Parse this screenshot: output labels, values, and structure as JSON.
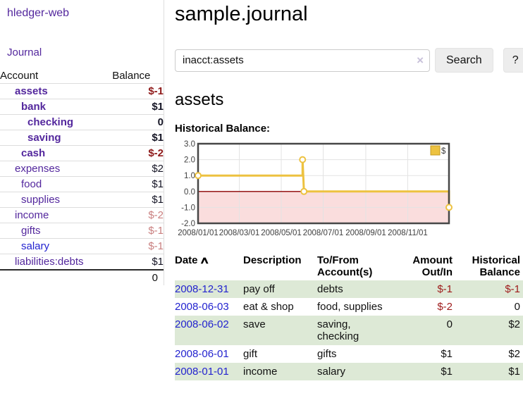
{
  "sidebar": {
    "brand": "hledger-web",
    "journal_link": "Journal",
    "accounts_table": {
      "col_account": "Account",
      "col_balance": "Balance",
      "rows": [
        {
          "account": "assets",
          "balance": "$-1",
          "indent": 0,
          "bold": true,
          "negative": true,
          "blue": false
        },
        {
          "account": "bank",
          "balance": "$1",
          "indent": 1,
          "bold": true,
          "negative": false,
          "blue": false
        },
        {
          "account": "checking",
          "balance": "0",
          "indent": 2,
          "bold": true,
          "negative": false,
          "blue": false
        },
        {
          "account": "saving",
          "balance": "$1",
          "indent": 2,
          "bold": true,
          "negative": false,
          "blue": false
        },
        {
          "account": "cash",
          "balance": "$-2",
          "indent": 1,
          "bold": true,
          "negative": true,
          "blue": false
        },
        {
          "account": "expenses",
          "balance": "$2",
          "indent": 0,
          "bold": false,
          "negative": false,
          "blue": false
        },
        {
          "account": "food",
          "balance": "$1",
          "indent": 1,
          "bold": false,
          "negative": false,
          "blue": false
        },
        {
          "account": "supplies",
          "balance": "$1",
          "indent": 1,
          "bold": false,
          "negative": false,
          "blue": false
        },
        {
          "account": "income",
          "balance": "$-2",
          "indent": 0,
          "bold": false,
          "negative": true,
          "blue": false
        },
        {
          "account": "gifts",
          "balance": "$-1",
          "indent": 1,
          "bold": false,
          "negative": true,
          "blue": false
        },
        {
          "account": "salary",
          "balance": "$-1",
          "indent": 1,
          "bold": false,
          "negative": true,
          "blue": true
        },
        {
          "account": "liabilities:debts",
          "balance": "$1",
          "indent": 0,
          "bold": false,
          "negative": false,
          "blue": false
        }
      ],
      "total": "0"
    }
  },
  "main": {
    "title": "sample.journal",
    "search": {
      "value": "inacct:assets",
      "clear": "×",
      "button": "Search",
      "help": "?"
    },
    "register": {
      "heading": "assets",
      "chart_title": "Historical Balance:",
      "table": {
        "headers": {
          "date": "Date",
          "sort_icon": "∧",
          "description": "Description",
          "accounts": "To/From Account(s)",
          "amount": "Amount Out/In",
          "balance": "Historical Balance"
        },
        "rows": [
          {
            "date": "2008-12-31",
            "description": "pay off",
            "accounts": "debts",
            "amount": "$-1",
            "amount_negative": true,
            "balance": "$-1",
            "balance_negative": true
          },
          {
            "date": "2008-06-03",
            "description": "eat & shop",
            "accounts": "food, supplies",
            "amount": "$-2",
            "amount_negative": true,
            "balance": "0",
            "balance_negative": false
          },
          {
            "date": "2008-06-02",
            "description": "save",
            "accounts": "saving, checking",
            "amount": "0",
            "amount_negative": false,
            "balance": "$2",
            "balance_negative": false
          },
          {
            "date": "2008-06-01",
            "description": "gift",
            "accounts": "gifts",
            "amount": "$1",
            "amount_negative": false,
            "balance": "$2",
            "balance_negative": false
          },
          {
            "date": "2008-01-01",
            "description": "income",
            "accounts": "salary",
            "amount": "$1",
            "amount_negative": false,
            "balance": "$1",
            "balance_negative": false
          }
        ]
      }
    }
  },
  "colors": {
    "purple_link": "#53279d",
    "blue_link": "#2323cf",
    "negative_bold": "#8e1919",
    "negative_light": "#c97f7f",
    "negative_table": "#9e1a1a",
    "row_stripe_green": "#dde9d6",
    "series_gold": "#edc240",
    "negative_region_pink": "#fadddd",
    "zero_line_red": "#8b0000"
  },
  "chart_data": {
    "type": "line",
    "title": "Historical Balance:",
    "x_type": "date",
    "x_range": [
      "2008-01-01",
      "2008-12-31"
    ],
    "ylim": [
      -2,
      3
    ],
    "yticks": [
      "3.0",
      "2.0",
      "1.0",
      "0.0",
      "-1.0",
      "-2.0"
    ],
    "xticks": [
      {
        "label": "2008/01/01",
        "date": "2008-01-01"
      },
      {
        "label": "2008/03/01",
        "date": "2008-03-01"
      },
      {
        "label": "2008/05/01",
        "date": "2008-05-01"
      },
      {
        "label": "2008/07/01",
        "date": "2008-07-01"
      },
      {
        "label": "2008/09/01",
        "date": "2008-09-01"
      },
      {
        "label": "2008/11/01",
        "date": "2008-11-01"
      }
    ],
    "grid": true,
    "legend": {
      "label": "$",
      "position": "top-right"
    },
    "negative_region_shaded": true,
    "series": [
      {
        "name": "$",
        "color": "#edc240",
        "step": true,
        "points": [
          [
            "2008-01-01",
            1
          ],
          [
            "2008-06-01",
            1
          ],
          [
            "2008-06-01",
            2
          ],
          [
            "2008-06-03",
            0
          ],
          [
            "2008-12-31",
            0
          ],
          [
            "2008-12-31",
            -1
          ]
        ],
        "markers": [
          [
            "2008-01-01",
            1
          ],
          [
            "2008-06-01",
            2
          ],
          [
            "2008-06-03",
            0
          ],
          [
            "2008-12-31",
            -1
          ]
        ]
      }
    ]
  }
}
